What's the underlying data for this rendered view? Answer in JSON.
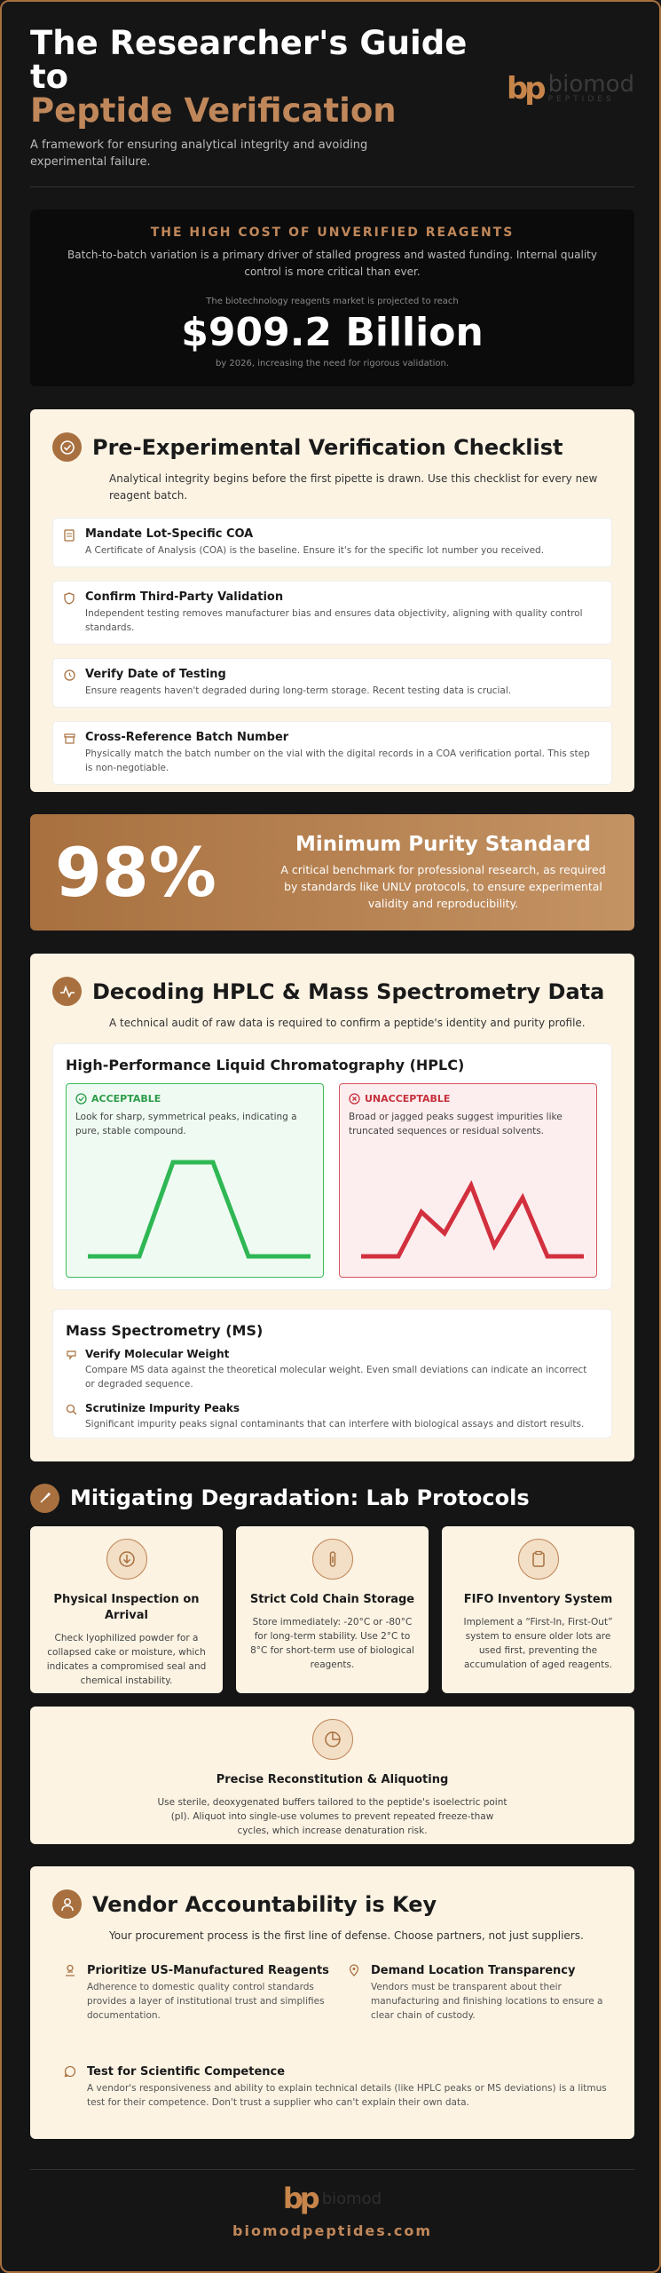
{
  "header": {
    "title_line1": "The Researcher's Guide",
    "title_line2": "to",
    "title_highlight": "Peptide Verification",
    "subtitle": "A framework for ensuring analytical integrity and avoiding experimental failure.",
    "logo": {
      "mark": "bp",
      "name": "biomod",
      "tagline": "PEPTIDES"
    }
  },
  "cost": {
    "heading": "THE HIGH COST OF UNVERIFIED REAGENTS",
    "text": "Batch-to-batch variation is a primary driver of stalled progress and wasted funding. Internal quality control is more critical than ever.",
    "projection_intro": "The biotechnology reagents market is projected to reach",
    "amount": "$909.2 Billion",
    "projection_note": "by 2026, increasing the need for rigorous validation."
  },
  "checklist": {
    "title": "Pre-Experimental Verification Checklist",
    "intro": "Analytical integrity begins before the first pipette is drawn. Use this checklist for every new reagent batch.",
    "items": [
      {
        "title": "Mandate Lot-Specific COA",
        "text": "A Certificate of Analysis (COA) is the baseline. Ensure it's for the specific lot number you received."
      },
      {
        "title": "Confirm Third-Party Validation",
        "text": "Independent testing removes manufacturer bias and ensures data objectivity, aligning with quality control standards."
      },
      {
        "title": "Verify Date of Testing",
        "text": "Ensure reagents haven't degraded during long-term storage. Recent testing data is crucial."
      },
      {
        "title": "Cross-Reference Batch Number",
        "text": "Physically match the batch number on the vial with the digital records in a COA verification portal. This step is non-negotiable."
      }
    ]
  },
  "purity": {
    "value": "98%",
    "title": "Minimum Purity Standard",
    "text": "A critical benchmark for professional research, as required by standards like UNLV protocols, to ensure experimental validity and reproducibility."
  },
  "analysis": {
    "title": "Decoding HPLC & Mass Spectrometry Data",
    "intro": "A technical audit of raw data is required to confirm a peptide's identity and purity profile.",
    "hplc": {
      "title": "High-Performance Liquid Chromatography (HPLC)",
      "acceptable": {
        "label": "ACCEPTABLE",
        "text": "Look for sharp, symmetrical peaks, indicating a pure, stable compound."
      },
      "unacceptable": {
        "label": "UNACCEPTABLE",
        "text": "Broad or jagged peaks suggest impurities like truncated sequences or residual solvents."
      }
    },
    "ms": {
      "title": "Mass Spectrometry (MS)",
      "items": [
        {
          "title": "Verify Molecular Weight",
          "text": "Compare MS data against the theoretical molecular weight. Even small deviations can indicate an incorrect or degraded sequence."
        },
        {
          "title": "Scrutinize Impurity Peaks",
          "text": "Significant impurity peaks signal contaminants that can interfere with biological assays and distort results."
        }
      ]
    }
  },
  "degradation": {
    "title": "Mitigating Degradation: Lab Protocols",
    "cards": [
      {
        "title": "Physical Inspection on Arrival",
        "text": "Check lyophilized powder for a collapsed cake or moisture, which indicates a compromised seal and chemical instability."
      },
      {
        "title": "Strict Cold Chain Storage",
        "text": "Store immediately: -20°C or -80°C for long-term stability. Use 2°C to 8°C for short-term use of biological reagents."
      },
      {
        "title": "FIFO Inventory System",
        "text": "Implement a “First-In, First-Out” system to ensure older lots are used first, preventing the accumulation of aged reagents."
      },
      {
        "title": "Precise Reconstitution & Aliquoting",
        "text": "Use sterile, deoxygenated buffers tailored to the peptide's isoelectric point (pI). Aliquot into single-use volumes to prevent repeated freeze-thaw cycles, which increase denaturation risk."
      }
    ]
  },
  "vendor": {
    "title": "Vendor Accountability is Key",
    "intro": "Your procurement process is the first line of defense. Choose partners, not just suppliers.",
    "items": [
      {
        "title": "Prioritize US-Manufactured Reagents",
        "text": "Adherence to domestic quality control standards provides a layer of institutional trust and simplifies documentation."
      },
      {
        "title": "Demand Location Transparency",
        "text": "Vendors must be transparent about their manufacturing and finishing locations to ensure a clear chain of custody."
      },
      {
        "title": "Test for Scientific Competence",
        "text": "A vendor's responsiveness and ability to explain technical details (like HPLC peaks or MS deviations) is a litmus test for their competence. Don't trust a supplier who can't explain their own data."
      }
    ]
  },
  "footer": {
    "url": "biomodpeptides.com"
  }
}
